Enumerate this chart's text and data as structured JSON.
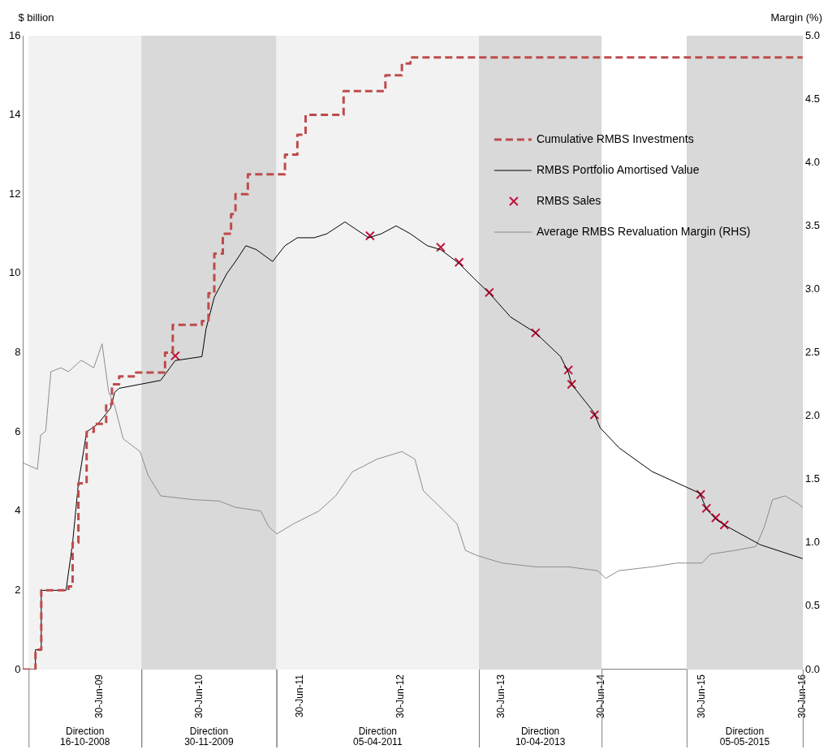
{
  "chart_data": {
    "type": "line",
    "ylabel": "$ billion",
    "y2label": "Margin (%)",
    "xlim": [
      "2008-09-26",
      "2016-06-30"
    ],
    "xticks": [
      {
        "value": "2009-06-30",
        "label": "30-Jun-09"
      },
      {
        "value": "2010-06-30",
        "label": "30-Jun-10"
      },
      {
        "value": "2011-06-30",
        "label": "30-Jun-11"
      },
      {
        "value": "2012-06-30",
        "label": "30-Jun-12"
      },
      {
        "value": "2013-06-30",
        "label": "30-Jun-13"
      },
      {
        "value": "2014-06-30",
        "label": "30-Jun-14"
      },
      {
        "value": "2015-06-30",
        "label": "30-Jun-15"
      },
      {
        "value": "2016-06-30",
        "label": "30-Jun-16"
      }
    ],
    "ylim": [
      0,
      16
    ],
    "yticks": [
      0,
      2,
      4,
      6,
      8,
      10,
      12,
      14,
      16
    ],
    "y2lim": [
      0,
      5
    ],
    "y2ticks": [
      {
        "value": 0,
        "label": "0.0"
      },
      0.5,
      {
        "value": 1,
        "label": "1.0"
      },
      1.5,
      {
        "value": 2,
        "label": "2.0"
      },
      2.5,
      {
        "value": 3,
        "label": "3.0"
      },
      3.5,
      {
        "value": 4,
        "label": "4.0"
      },
      4.5,
      {
        "value": 5,
        "label": "5.0"
      }
    ],
    "legend": "top right",
    "annotations": [
      "Direction 16-10-2008",
      "Direction 30-11-2009",
      "Direction 05-04-2011",
      "Direction 10-04-2013",
      "Direction 05-05-2015"
    ],
    "bands": [
      {
        "axis": "x",
        "from": "2008-10-16",
        "to": "2009-11-30",
        "color": "#f2f2f2"
      },
      {
        "axis": "x",
        "from": "2009-11-30",
        "to": "2011-04-05",
        "color": "#d9d9d9"
      },
      {
        "axis": "x",
        "from": "2011-04-05",
        "to": "2013-04-10",
        "color": "#f2f2f2"
      },
      {
        "axis": "x",
        "from": "2013-04-10",
        "to": "2014-06-30",
        "color": "#d9d9d9"
      },
      {
        "axis": "x",
        "from": "2015-05-05",
        "to": "2016-06-30",
        "color": "#d9d9d9"
      }
    ],
    "series": [
      {
        "name": "Cumulative RMBS Investments",
        "type": "step",
        "line_style": "dashed",
        "color": "#be4b4b",
        "x": [
          "2008-09-26",
          "2008-11-10",
          "2008-12-01",
          "2009-03-10",
          "2009-03-25",
          "2009-04-15",
          "2009-05-15",
          "2009-06-10",
          "2009-07-25",
          "2009-08-15",
          "2009-09-10",
          "2009-11-10",
          "2010-02-24",
          "2010-03-24",
          "2010-07-08",
          "2010-08-01",
          "2010-08-22",
          "2010-09-22",
          "2010-10-22",
          "2010-11-07",
          "2010-12-22",
          "2011-05-06",
          "2011-06-20",
          "2011-07-20",
          "2011-12-05",
          "2012-05-05",
          "2012-07-04",
          "2012-08-04",
          "2016-06-30"
        ],
        "values": [
          0,
          0.5,
          2.0,
          2.1,
          3.2,
          4.7,
          6.0,
          6.2,
          6.7,
          7.2,
          7.4,
          7.5,
          8.0,
          8.7,
          8.8,
          9.5,
          10.5,
          11.0,
          11.5,
          12.0,
          12.5,
          13.0,
          13.5,
          14.0,
          14.6,
          15.0,
          15.3,
          15.45,
          15.45
        ]
      },
      {
        "name": "RMBS Portfolio Amortised Value",
        "type": "line",
        "color": "#000000",
        "x": [
          "2008-09-26",
          "2008-11-09",
          "2008-11-10",
          "2008-11-30",
          "2008-12-01",
          "2009-03-01",
          "2009-03-25",
          "2009-04-15",
          "2009-05-15",
          "2009-06-25",
          "2009-08-10",
          "2009-08-25",
          "2009-09-10",
          "2009-11-25",
          "2010-02-08",
          "2010-04-02",
          "2010-07-08",
          "2010-07-23",
          "2010-08-22",
          "2010-10-07",
          "2010-11-07",
          "2010-12-15",
          "2011-01-22",
          "2011-03-22",
          "2011-05-06",
          "2011-06-20",
          "2011-08-20",
          "2011-10-05",
          "2011-12-10",
          "2012-03-05",
          "2012-04-20",
          "2012-06-13",
          "2012-08-04",
          "2012-10-04",
          "2012-11-22",
          "2013-01-28",
          "2013-04-03",
          "2013-05-18",
          "2013-08-03",
          "2013-11-02",
          "2014-02-01",
          "2014-03-01",
          "2014-03-13",
          "2014-06-01",
          "2014-06-25",
          "2014-09-01",
          "2014-12-30",
          "2015-06-22",
          "2015-07-16",
          "2015-08-19",
          "2015-09-19",
          "2016-01-28",
          "2016-06-30"
        ],
        "values": [
          0,
          0,
          0.5,
          0.5,
          2.0,
          2.0,
          3.2,
          4.7,
          6.0,
          6.2,
          6.6,
          7.0,
          7.1,
          7.2,
          7.3,
          7.8,
          7.9,
          8.6,
          9.4,
          10.0,
          10.3,
          10.7,
          10.6,
          10.3,
          10.7,
          10.9,
          10.9,
          11.0,
          11.3,
          10.9,
          11.0,
          11.2,
          11.0,
          10.7,
          10.6,
          10.25,
          9.8,
          9.5,
          8.9,
          8.5,
          7.9,
          7.5,
          7.2,
          6.5,
          6.1,
          5.6,
          5.0,
          4.45,
          4.05,
          3.8,
          3.65,
          3.15,
          2.8
        ]
      },
      {
        "name": "RMBS Sales",
        "type": "scatter",
        "marker": "cross",
        "color": "#c0143c",
        "x": [
          "2010-04-02",
          "2012-03-10",
          "2012-11-22",
          "2013-01-28",
          "2013-05-18",
          "2013-11-02",
          "2014-03-01",
          "2014-03-13",
          "2014-06-04",
          "2015-06-25",
          "2015-07-16",
          "2015-08-19",
          "2015-09-19"
        ],
        "values": [
          7.92,
          10.95,
          10.66,
          10.28,
          9.52,
          8.5,
          7.56,
          7.2,
          6.43,
          4.42,
          4.07,
          3.83,
          3.65
        ]
      },
      {
        "name": "Average RMBS Revaluation Margin (RHS)",
        "type": "line",
        "axis": "y2",
        "color": "#8c8c8c",
        "x": [
          "2008-09-26",
          "2008-11-17",
          "2008-11-29",
          "2008-12-17",
          "2009-01-05",
          "2009-02-10",
          "2009-03-10",
          "2009-04-25",
          "2009-06-10",
          "2009-07-10",
          "2009-08-03",
          "2009-08-25",
          "2009-09-25",
          "2009-11-25",
          "2009-12-25",
          "2010-02-08",
          "2010-06-08",
          "2010-09-08",
          "2010-11-07",
          "2011-02-07",
          "2011-03-07",
          "2011-04-06",
          "2011-06-06",
          "2011-09-06",
          "2011-11-06",
          "2012-01-06",
          "2012-04-05",
          "2012-07-04",
          "2012-08-20",
          "2012-09-20",
          "2012-12-05",
          "2013-01-20",
          "2013-02-20",
          "2013-04-03",
          "2013-07-03",
          "2013-11-02",
          "2014-03-01",
          "2014-06-15",
          "2014-07-15",
          "2014-09-01",
          "2014-12-30",
          "2015-03-30",
          "2015-06-30",
          "2015-07-30",
          "2015-10-28",
          "2016-01-12",
          "2016-02-12",
          "2016-03-12",
          "2016-04-27",
          "2016-06-12",
          "2016-06-30"
        ],
        "values": [
          1.63,
          1.58,
          1.85,
          1.88,
          2.35,
          2.38,
          2.35,
          2.44,
          2.38,
          2.57,
          2.19,
          2.08,
          1.82,
          1.72,
          1.53,
          1.37,
          1.34,
          1.33,
          1.28,
          1.25,
          1.13,
          1.07,
          1.15,
          1.25,
          1.37,
          1.56,
          1.66,
          1.72,
          1.66,
          1.41,
          1.25,
          1.15,
          0.94,
          0.9,
          0.84,
          0.81,
          0.81,
          0.78,
          0.72,
          0.78,
          0.81,
          0.84,
          0.84,
          0.91,
          0.94,
          0.97,
          1.13,
          1.34,
          1.37,
          1.31,
          1.28
        ]
      }
    ]
  }
}
